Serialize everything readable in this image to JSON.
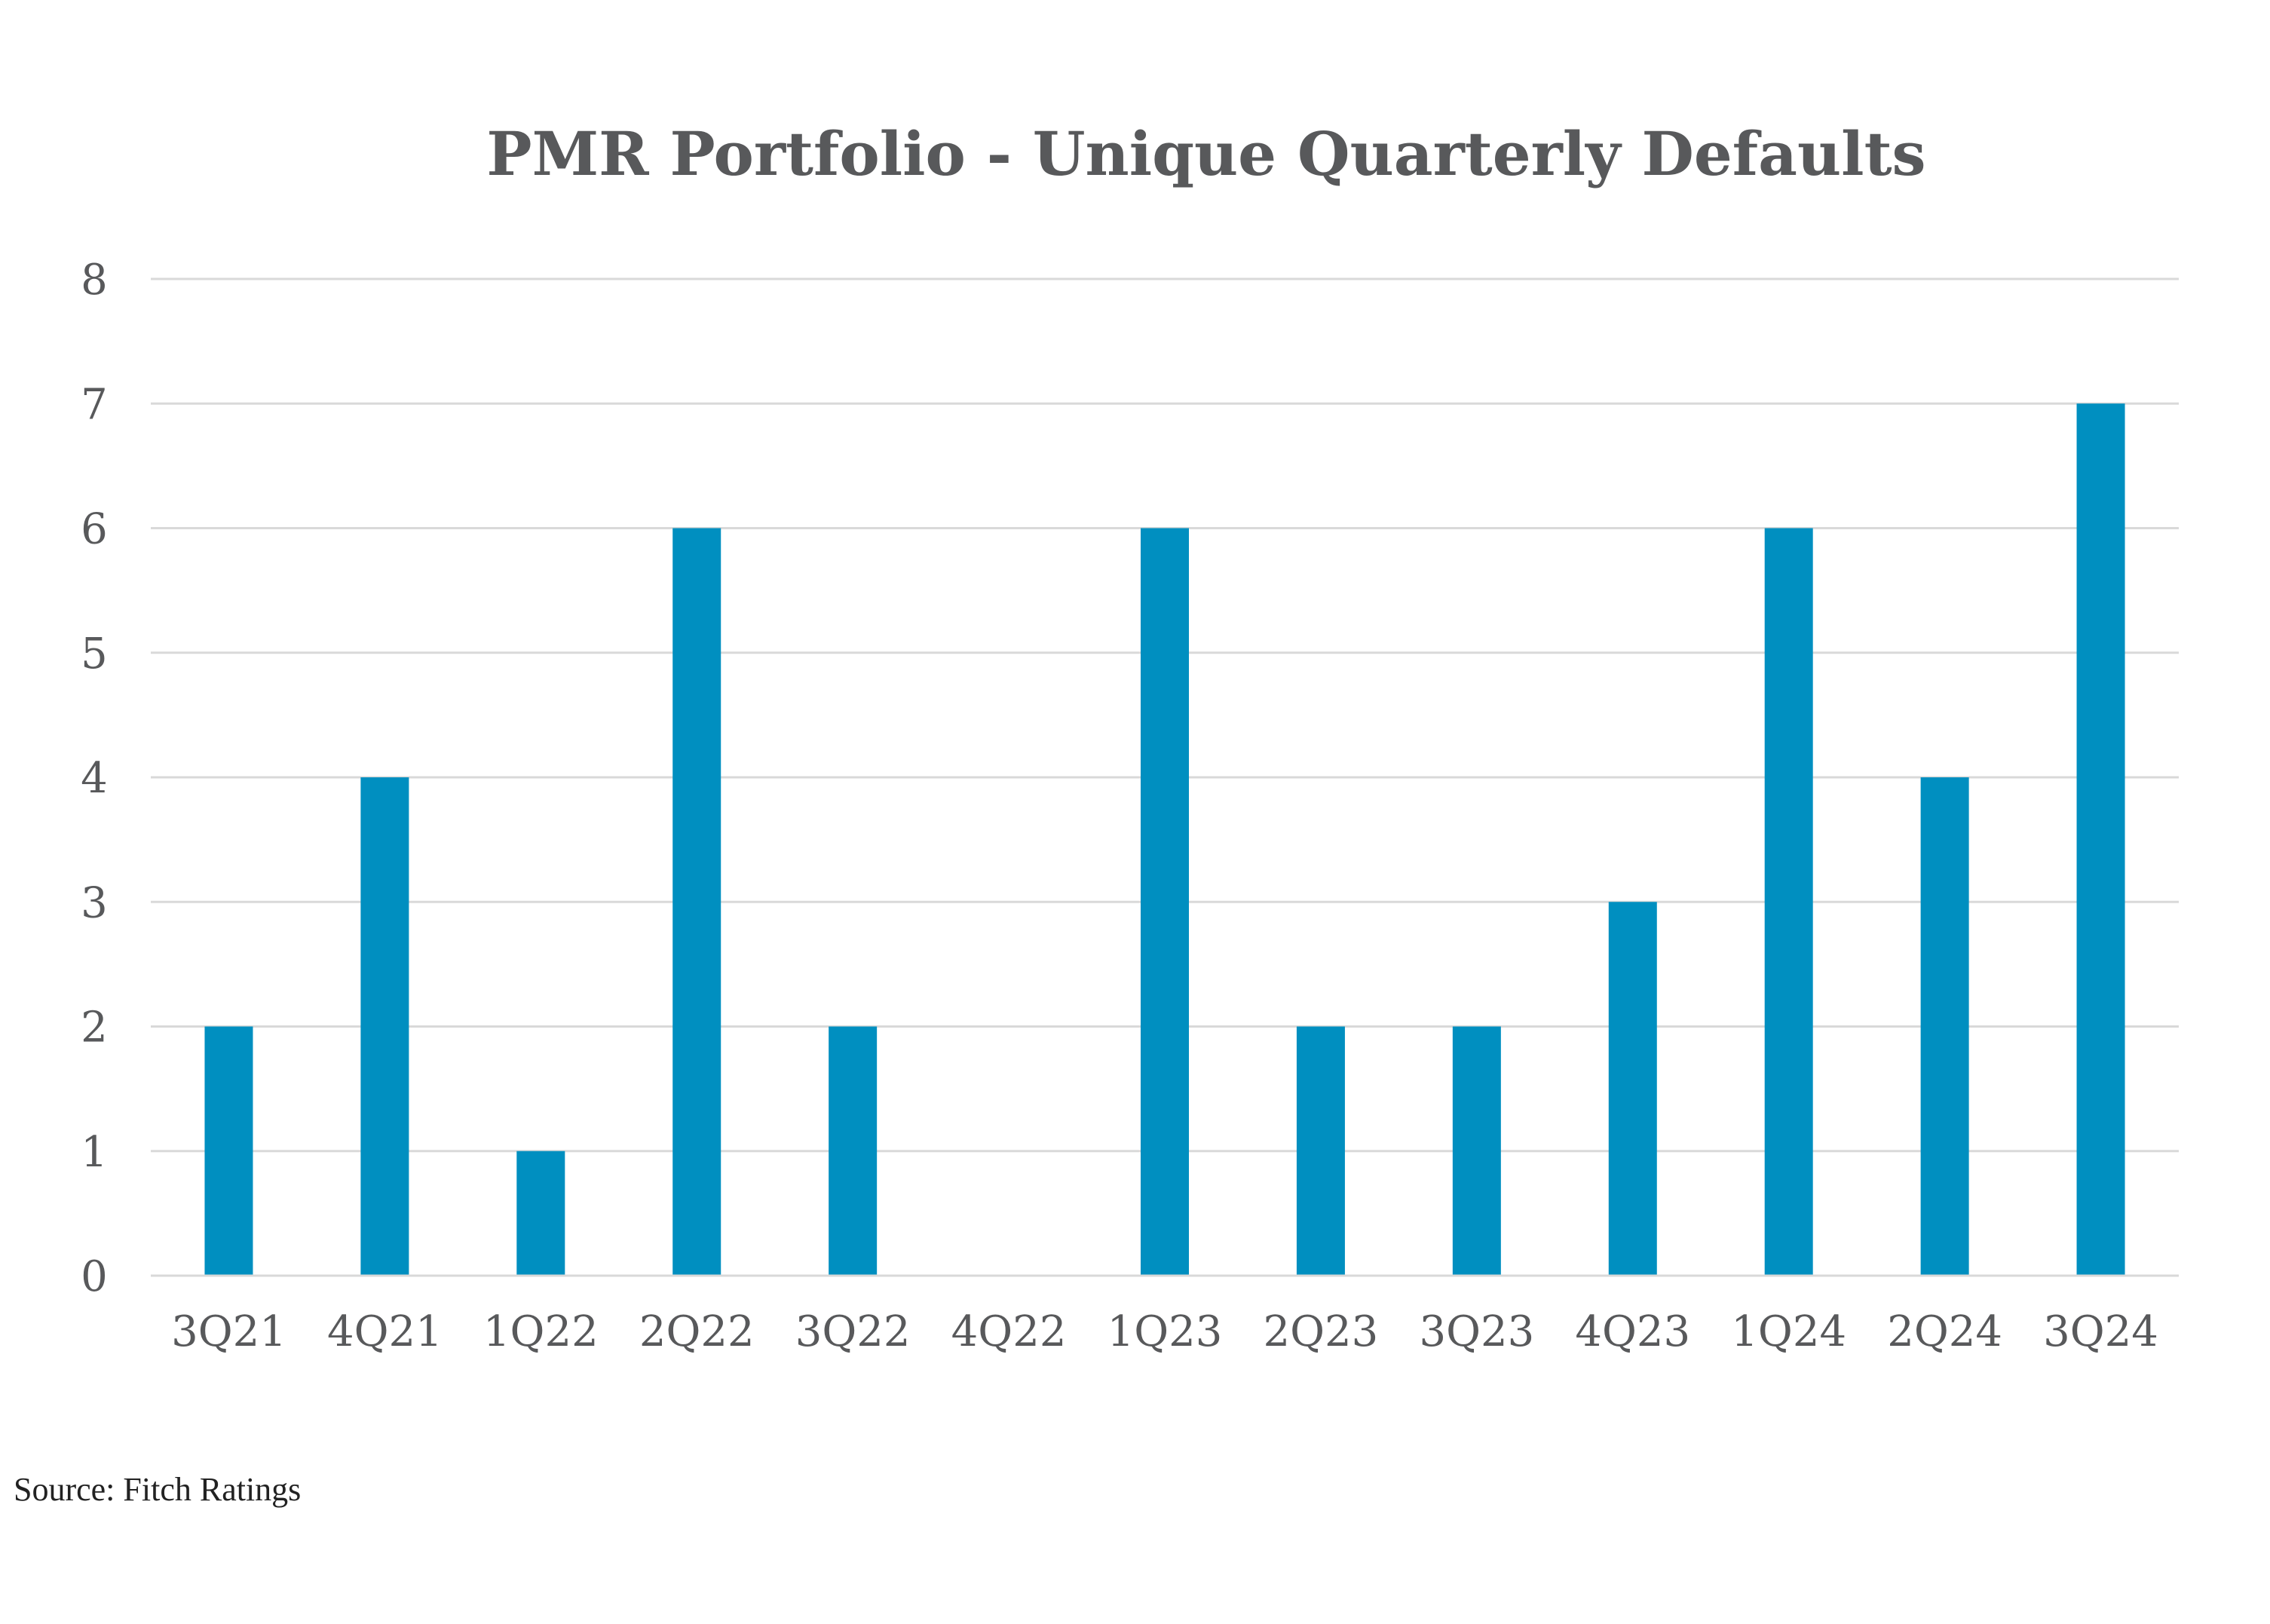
{
  "chart_data": {
    "type": "bar",
    "title": "PMR Portfolio - Unique Quarterly Defaults",
    "xlabel": "",
    "ylabel": "",
    "categories": [
      "3Q21",
      "4Q21",
      "1Q22",
      "2Q22",
      "3Q22",
      "4Q22",
      "1Q23",
      "2Q23",
      "3Q23",
      "4Q23",
      "1Q24",
      "2Q24",
      "3Q24"
    ],
    "values": [
      2,
      4,
      1,
      6,
      2,
      0,
      6,
      2,
      2,
      3,
      6,
      4,
      7
    ],
    "ylim": [
      0,
      8
    ],
    "yticks": [
      "0",
      "1",
      "2",
      "3",
      "4",
      "5",
      "6",
      "7",
      "8"
    ],
    "grid": true,
    "legend": "none",
    "bar_color": "#008fc0",
    "text_color": "#58595b",
    "grid_color": "#d9d9d9"
  },
  "source": "Source: Fitch Ratings"
}
